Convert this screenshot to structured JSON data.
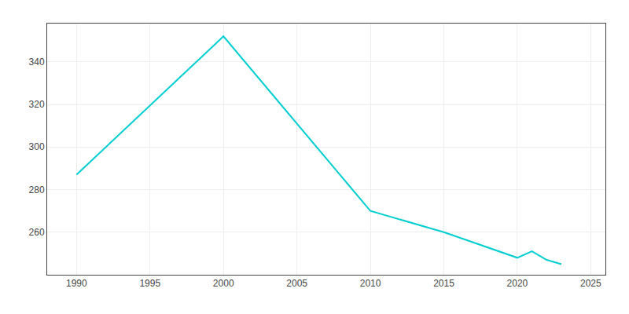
{
  "chart_data": {
    "type": "line",
    "x": [
      1990,
      2000,
      2010,
      2015,
      2020,
      2021,
      2022,
      2023
    ],
    "values": [
      287,
      352,
      270,
      260,
      248,
      251,
      247,
      245
    ],
    "color": "#00CED1",
    "xlim": [
      1988,
      2026
    ],
    "xticks": [
      1990,
      1995,
      2000,
      2005,
      2010,
      2015,
      2020,
      2025
    ],
    "ylim": [
      240,
      358
    ],
    "yticks": [
      260,
      280,
      300,
      320,
      340
    ],
    "grid": true
  }
}
